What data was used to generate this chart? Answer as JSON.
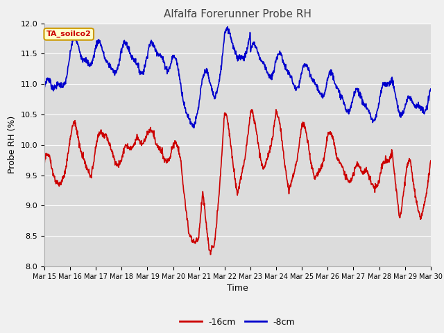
{
  "title": "Alfalfa Forerunner Probe RH",
  "ylabel": "Probe RH (%)",
  "xlabel": "Time",
  "ylim": [
    8.0,
    12.0
  ],
  "yticks": [
    8.0,
    8.5,
    9.0,
    9.5,
    10.0,
    10.5,
    11.0,
    11.5,
    12.0
  ],
  "x_labels": [
    "Mar 15",
    "Mar 16",
    "Mar 17",
    "Mar 18",
    "Mar 19",
    "Mar 20",
    "Mar 21",
    "Mar 22",
    "Mar 23",
    "Mar 24",
    "Mar 25",
    "Mar 26",
    "Mar 27",
    "Mar 28",
    "Mar 29",
    "Mar 30"
  ],
  "color_red": "#cc0000",
  "color_blue": "#0000cc",
  "legend_label_red": "-16cm",
  "legend_label_blue": "-8cm",
  "annotation_text": "TA_soilco2",
  "annotation_bg": "#ffffcc",
  "annotation_border": "#cc9900",
  "annotation_text_color": "#cc0000",
  "fig_bg": "#f0f0f0",
  "plot_bg": "#dcdcdc",
  "linewidth": 1.2,
  "title_fontsize": 11,
  "axis_fontsize": 9,
  "tick_fontsize": 8
}
